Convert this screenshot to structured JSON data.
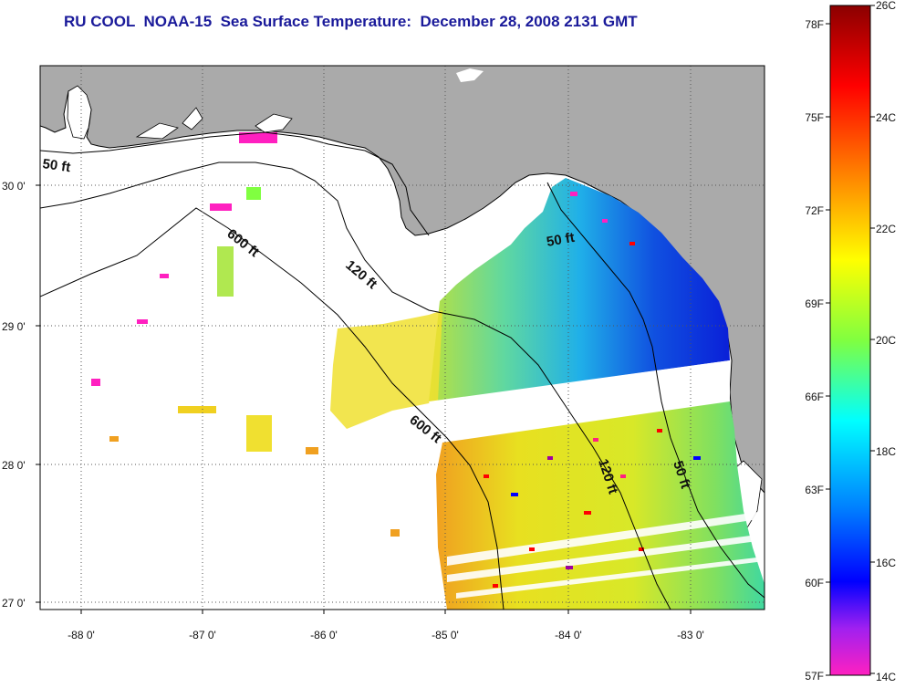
{
  "title": "RU COOL  NOAA-15  Sea Surface Temperature:  December 28, 2008 2131 GMT",
  "map": {
    "lat_labels": [
      "30 0'",
      "29 0'",
      "28 0'",
      "27 0'"
    ],
    "lon_labels": [
      "-88 0'",
      "-87 0'",
      "-86 0'",
      "-85 0'",
      "-84 0'",
      "-83 0'"
    ],
    "contour_labels": [
      {
        "text": "50 ft"
      },
      {
        "text": "600 ft"
      },
      {
        "text": "120 ft"
      },
      {
        "text": "50 ft"
      },
      {
        "text": "600 ft"
      },
      {
        "text": "120 ft"
      },
      {
        "text": "50 ft"
      }
    ]
  },
  "colorbar": {
    "fahrenheit_labels": [
      "78F",
      "75F",
      "72F",
      "69F",
      "66F",
      "63F",
      "60F",
      "57F"
    ],
    "celsius_labels": [
      "26C",
      "24C",
      "22C",
      "20C",
      "18C",
      "16C",
      "14C"
    ],
    "colors": [
      "#8b0000",
      "#ff0000",
      "#ff8000",
      "#ffff00",
      "#80ff40",
      "#00ffff",
      "#0080ff",
      "#0000ff",
      "#a020f0",
      "#ff20c0"
    ]
  }
}
